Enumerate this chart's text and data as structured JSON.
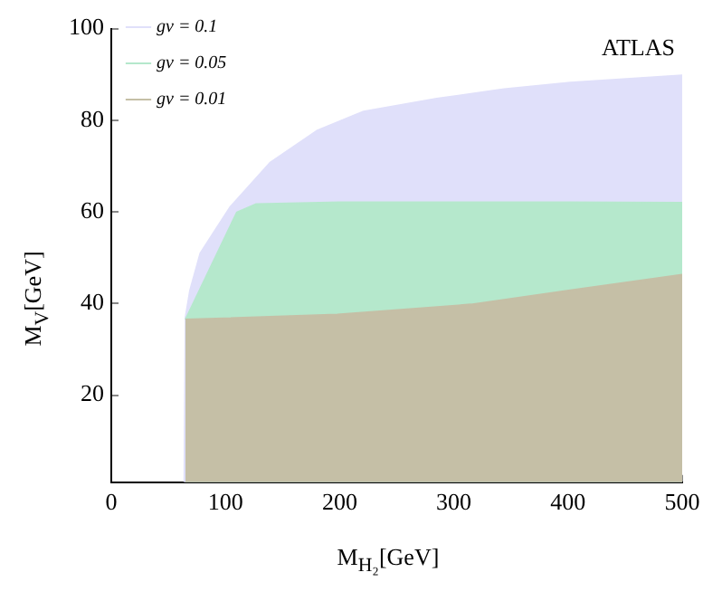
{
  "chart_data": {
    "type": "area",
    "xlabel": "M$_{H₂}$[GeV]",
    "ylabel": "M$_{V}$[GeV]",
    "annotations": [
      "ATLAS"
    ],
    "xlim": [
      0,
      500
    ],
    "ylim": [
      1,
      100
    ],
    "xticks": [
      0,
      100,
      200,
      300,
      400,
      500
    ],
    "yticks": [
      20,
      40,
      60,
      80,
      100
    ],
    "grid": false,
    "legend": "top left",
    "series": [
      {
        "name": "gv = 0.1",
        "color": "#e0e0fa",
        "x": [
          64,
          65,
          69,
          78,
          104,
          139,
          180,
          221,
          285,
          344,
          402,
          500
        ],
        "values": [
          1,
          37,
          42.9,
          51,
          61,
          70.7,
          77.7,
          81.9,
          84.7,
          86.8,
          88.2,
          89.8
        ]
      },
      {
        "name": "gv = 0.05",
        "color": "#b5e8cc",
        "x": [
          65,
          110,
          127,
          200,
          300,
          400,
          500
        ],
        "values": [
          36.5,
          59.9,
          61.7,
          62.1,
          62.1,
          62.1,
          62
        ]
      },
      {
        "name": "gv = 0.01",
        "color": "#c5bfa6",
        "x": [
          65,
          198,
          315,
          402,
          500
        ],
        "values": [
          36.5,
          37.6,
          39.8,
          42.9,
          46.3
        ]
      }
    ]
  }
}
